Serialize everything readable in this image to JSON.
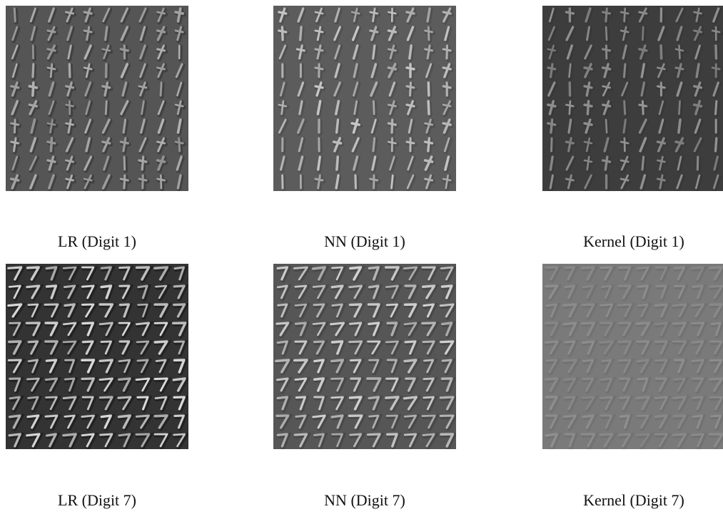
{
  "panels": [
    {
      "caption": "LR (Digit 1)"
    },
    {
      "caption": "NN (Digit 1)"
    },
    {
      "caption": "Kernel (Digit 1)"
    },
    {
      "caption": "LR (Digit 7)"
    },
    {
      "caption": "NN (Digit 7)"
    },
    {
      "caption": "Kernel (Digit 7)"
    }
  ]
}
